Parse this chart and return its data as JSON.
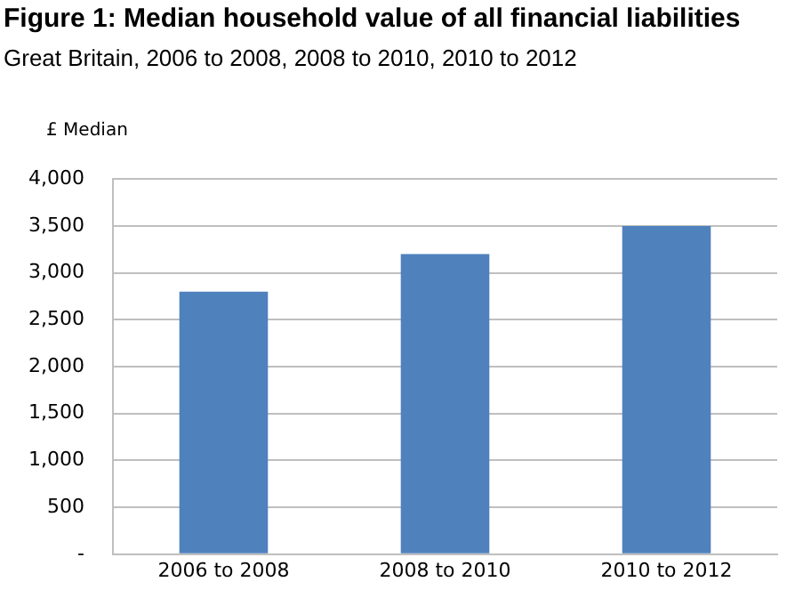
{
  "chart_data": {
    "type": "bar",
    "title": "Figure 1: Median household value of all financial liabilities",
    "subtitle": "Great Britain, 2006 to 2008, 2008 to 2010, 2010 to 2012",
    "ylabel": "£ Median",
    "categories": [
      "2006 to 2008",
      "2008 to 2010",
      "2010 to 2012"
    ],
    "values": [
      2800,
      3200,
      3500
    ],
    "color": "#4f81bd",
    "ylim": [
      0,
      4000
    ],
    "yticks": [
      {
        "value": 0,
        "label": "-"
      },
      {
        "value": 500,
        "label": "500"
      },
      {
        "value": 1000,
        "label": "1,000"
      },
      {
        "value": 1500,
        "label": "1,500"
      },
      {
        "value": 2000,
        "label": "2,000"
      },
      {
        "value": 2500,
        "label": "2,500"
      },
      {
        "value": 3000,
        "label": "3,000"
      },
      {
        "value": 3500,
        "label": "3,500"
      },
      {
        "value": 4000,
        "label": "4,000"
      }
    ],
    "grid": "y",
    "legend": false
  }
}
